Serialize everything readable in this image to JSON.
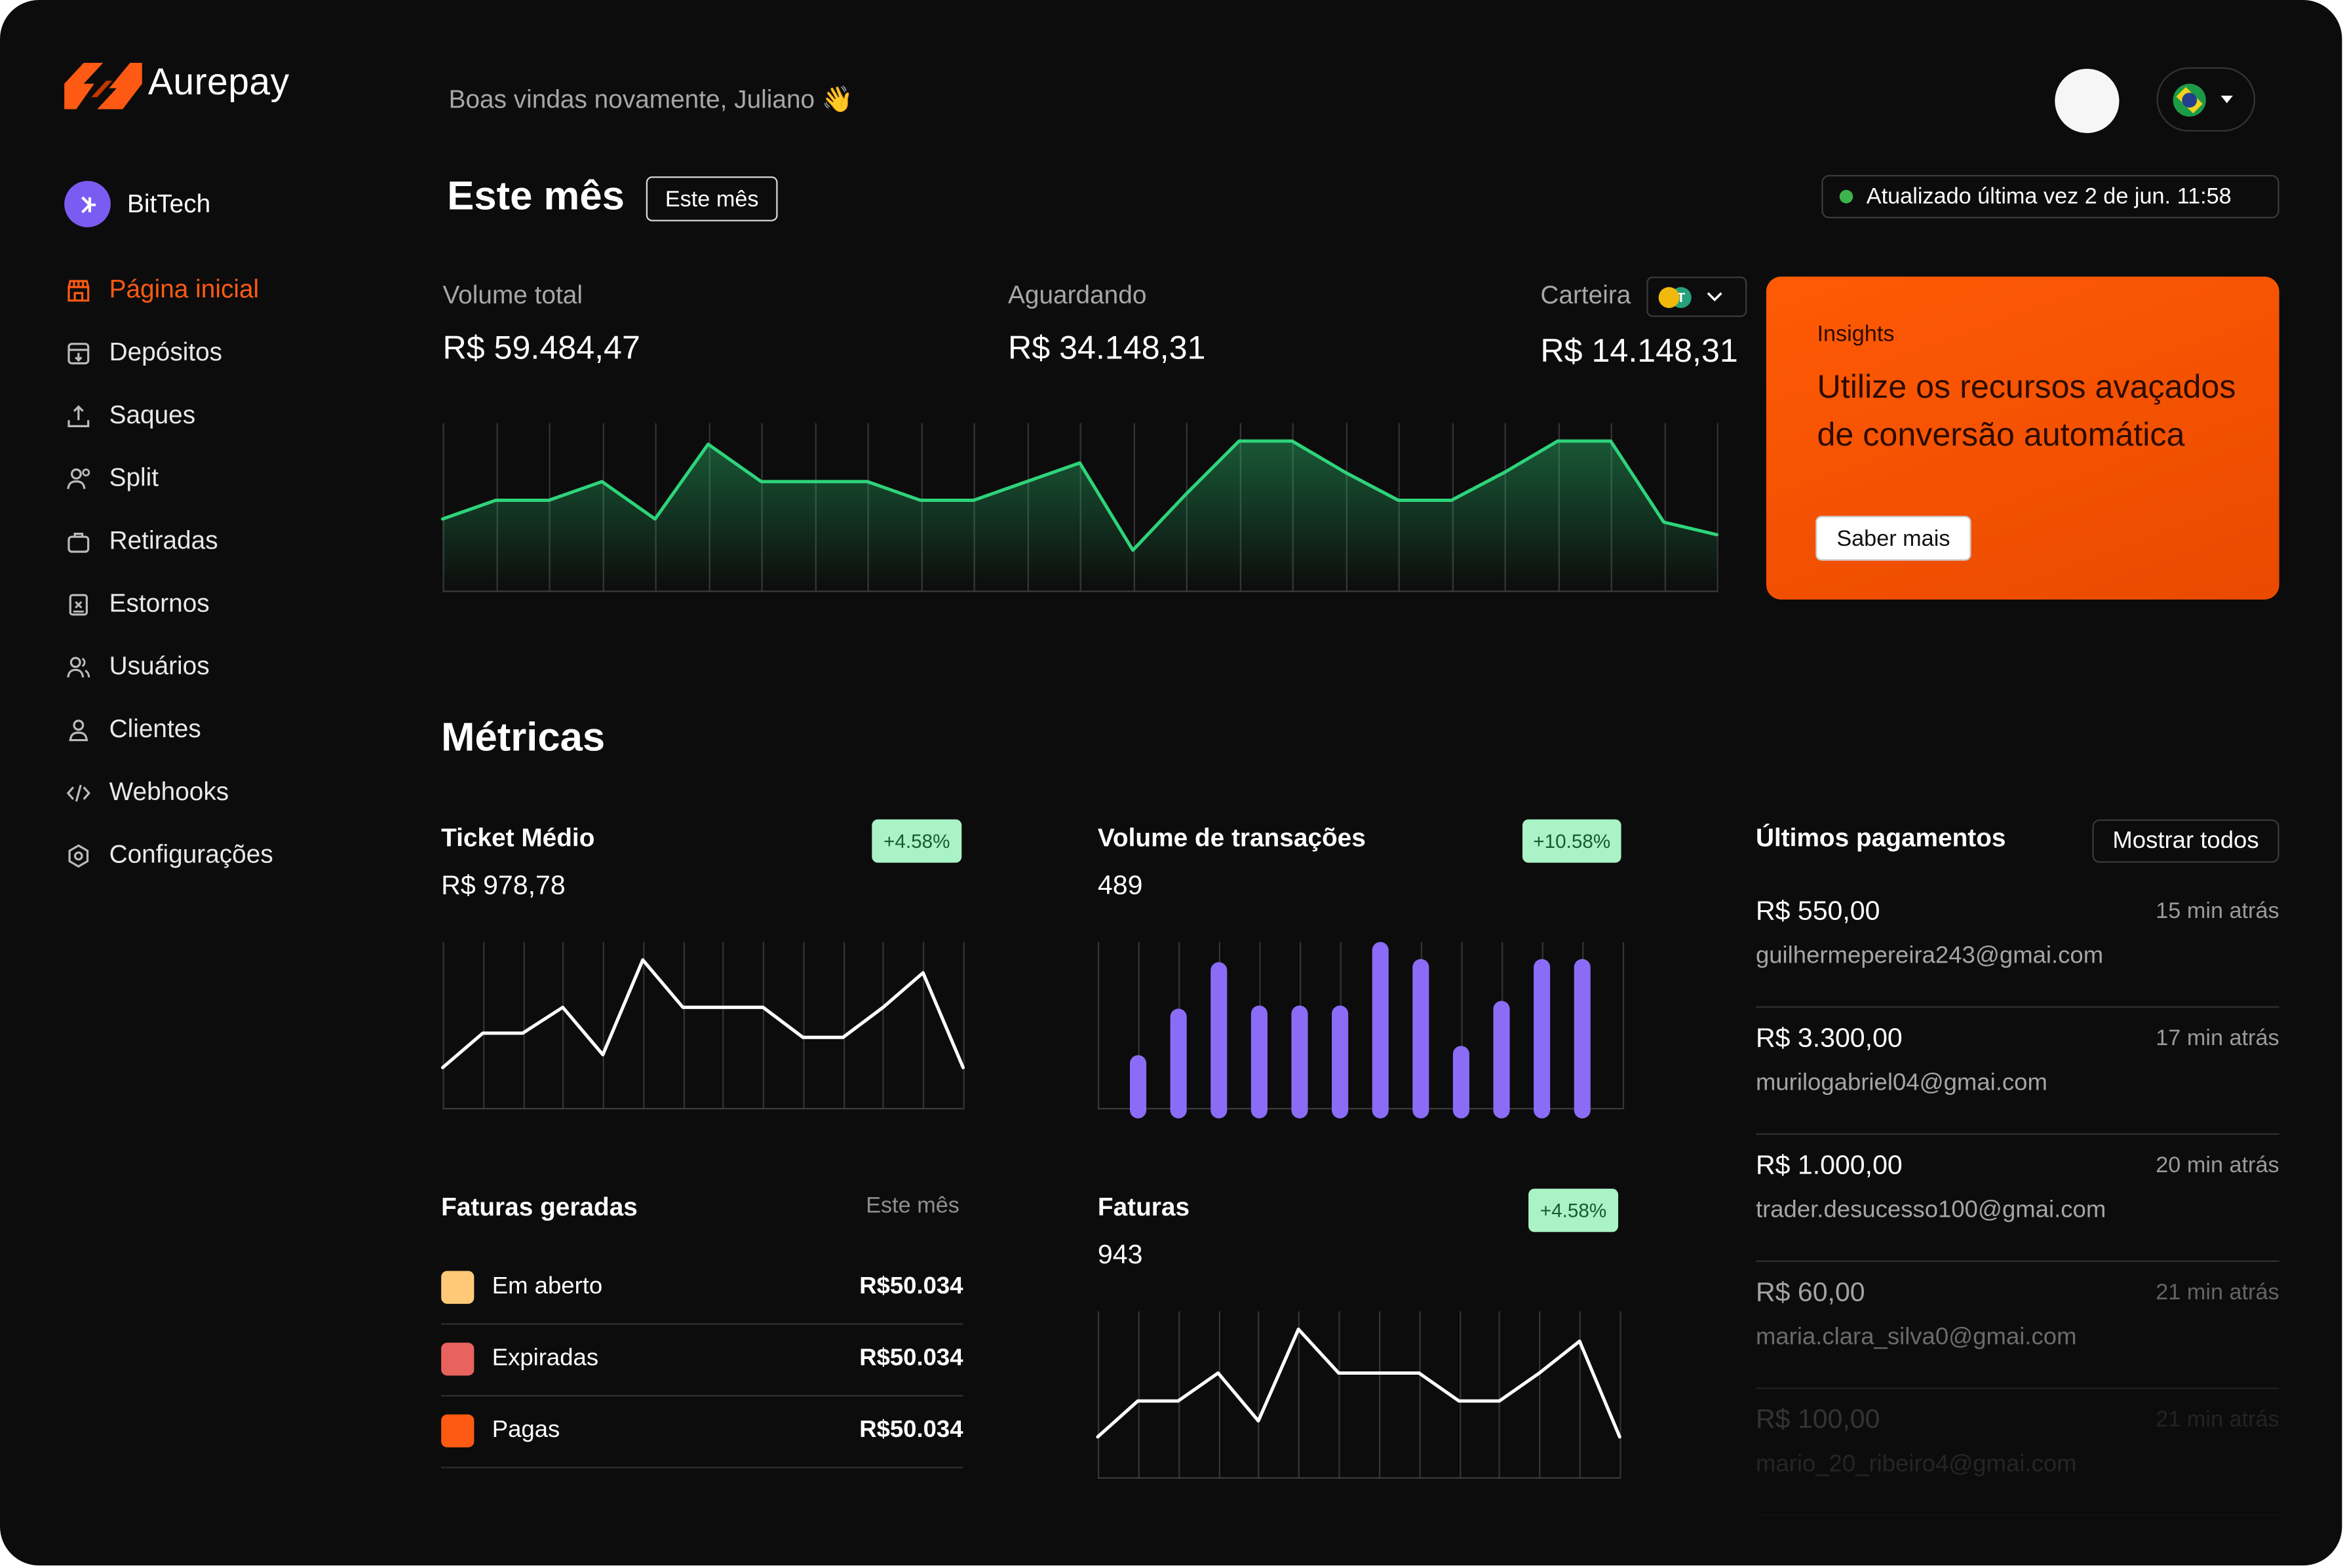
{
  "brand": {
    "name": "Aurepay",
    "accent": "#ff5a13"
  },
  "org": {
    "name": "BitTech"
  },
  "nav": [
    {
      "label": "Página inicial",
      "icon": "storefront-icon",
      "active": true
    },
    {
      "label": "Depósitos",
      "icon": "deposit-icon"
    },
    {
      "label": "Saques",
      "icon": "withdraw-icon"
    },
    {
      "label": "Split",
      "icon": "split-icon"
    },
    {
      "label": "Retiradas",
      "icon": "bag-icon"
    },
    {
      "label": "Estornos",
      "icon": "refund-icon"
    },
    {
      "label": "Usuários",
      "icon": "users-icon"
    },
    {
      "label": "Clientes",
      "icon": "client-icon"
    },
    {
      "label": "Webhooks",
      "icon": "code-icon"
    },
    {
      "label": "Configurações",
      "icon": "settings-icon"
    }
  ],
  "header": {
    "greeting": "Boas vindas novamente, Juliano 👋",
    "title": "Este mês",
    "period_button": "Este mês",
    "updated": "Atualizado última vez 2 de jun. 11:58"
  },
  "stats": {
    "total": {
      "label": "Volume total",
      "value": "R$ 59.484,47"
    },
    "pending": {
      "label": "Aguardando",
      "value": "R$ 34.148,31"
    },
    "wallet": {
      "label": "Carteira",
      "value": "R$ 14.148,31"
    }
  },
  "insights": {
    "label": "Insights",
    "text": "Utilize os recursos avaçados de conversão automática",
    "button": "Saber mais"
  },
  "metrics": {
    "title": "Métricas",
    "ticket": {
      "title": "Ticket Médio",
      "value": "R$ 978,78",
      "badge": "+4.58%"
    },
    "volume": {
      "title": "Volume de transações",
      "value": "489",
      "badge": "+10.58%"
    },
    "invoices_generated": {
      "title": "Faturas geradas",
      "period": "Este mês",
      "rows": [
        {
          "name": "Em aberto",
          "value": "R$50.034",
          "color": "#ffc978"
        },
        {
          "name": "Expiradas",
          "value": "R$50.034",
          "color": "#e8625e"
        },
        {
          "name": "Pagas",
          "value": "R$50.034",
          "color": "#ff5a13"
        }
      ]
    },
    "invoices": {
      "title": "Faturas",
      "value": "943",
      "badge": "+4.58%"
    }
  },
  "payments": {
    "title": "Últimos pagamentos",
    "show_all": "Mostrar todos",
    "items": [
      {
        "amount": "R$ 550,00",
        "time": "15 min atrás",
        "email": "guilhermepereira243@gmai.com"
      },
      {
        "amount": "R$ 3.300,00",
        "time": "17 min atrás",
        "email": "murilogabriel04@gmai.com"
      },
      {
        "amount": "R$ 1.000,00",
        "time": "20 min atrás",
        "email": "trader.desucesso100@gmai.com"
      },
      {
        "amount": "R$ 60,00",
        "time": "21 min atrás",
        "email": "maria.clara_silva0@gmai.com"
      },
      {
        "amount": "R$ 100,00",
        "time": "21 min atrás",
        "email": "mario_20_ribeiro4@gmai.com"
      }
    ]
  },
  "chart_data": [
    {
      "type": "area",
      "title": "Volume total",
      "color": "#2ed47a",
      "values": [
        1.0,
        1.6,
        1.6,
        2.2,
        1.0,
        3.4,
        2.2,
        2.2,
        2.2,
        1.6,
        1.6,
        2.2,
        2.8,
        0.0,
        1.8,
        3.5,
        3.5,
        2.5,
        1.6,
        1.6,
        2.5,
        3.5,
        3.5,
        0.9,
        0.5
      ]
    },
    {
      "type": "line",
      "title": "Ticket Médio",
      "color": "#ffffff",
      "values": [
        0.0,
        0.8,
        0.8,
        1.4,
        0.3,
        2.5,
        1.4,
        1.4,
        1.4,
        0.7,
        0.7,
        1.4,
        2.2,
        0.0
      ]
    },
    {
      "type": "bar",
      "title": "Volume de transações",
      "color": "#8b6cf6",
      "values": [
        3.5,
        6.5,
        9.5,
        6.7,
        6.7,
        6.7,
        10.8,
        9.7,
        4.1,
        7.0,
        9.7,
        9.7
      ]
    },
    {
      "type": "line",
      "title": "Faturas",
      "color": "#ffffff",
      "values": [
        0.0,
        0.9,
        0.9,
        1.6,
        0.4,
        2.7,
        1.6,
        1.6,
        1.6,
        0.9,
        0.9,
        1.6,
        2.4,
        0.0
      ]
    }
  ]
}
